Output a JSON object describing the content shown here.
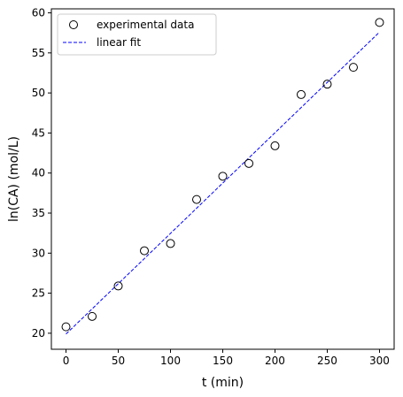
{
  "chart_data": {
    "type": "scatter",
    "title": "",
    "xlabel": "t (min)",
    "ylabel": "ln(CA) (mol/L)",
    "xlim": [
      -14,
      314
    ],
    "ylim": [
      18,
      60.5
    ],
    "xticks": [
      0,
      50,
      100,
      150,
      200,
      250,
      300
    ],
    "yticks": [
      20,
      25,
      30,
      35,
      40,
      45,
      50,
      55,
      60
    ],
    "grid": false,
    "legend_placement": "upper-left",
    "colors": {
      "scatter_edge": "#000000",
      "fit_line": "#0000ff"
    },
    "series": [
      {
        "name": "experimental data",
        "kind": "scatter",
        "x": [
          0,
          25,
          50,
          75,
          100,
          125,
          150,
          175,
          200,
          225,
          250,
          275,
          300
        ],
        "y": [
          20.8,
          22.1,
          25.9,
          30.3,
          31.2,
          36.7,
          39.6,
          41.2,
          43.4,
          49.8,
          51.1,
          53.2,
          58.8
        ]
      },
      {
        "name": "linear fit",
        "kind": "line",
        "style": "dashed",
        "x": [
          0,
          300
        ],
        "y": [
          19.9,
          57.6
        ]
      }
    ]
  }
}
